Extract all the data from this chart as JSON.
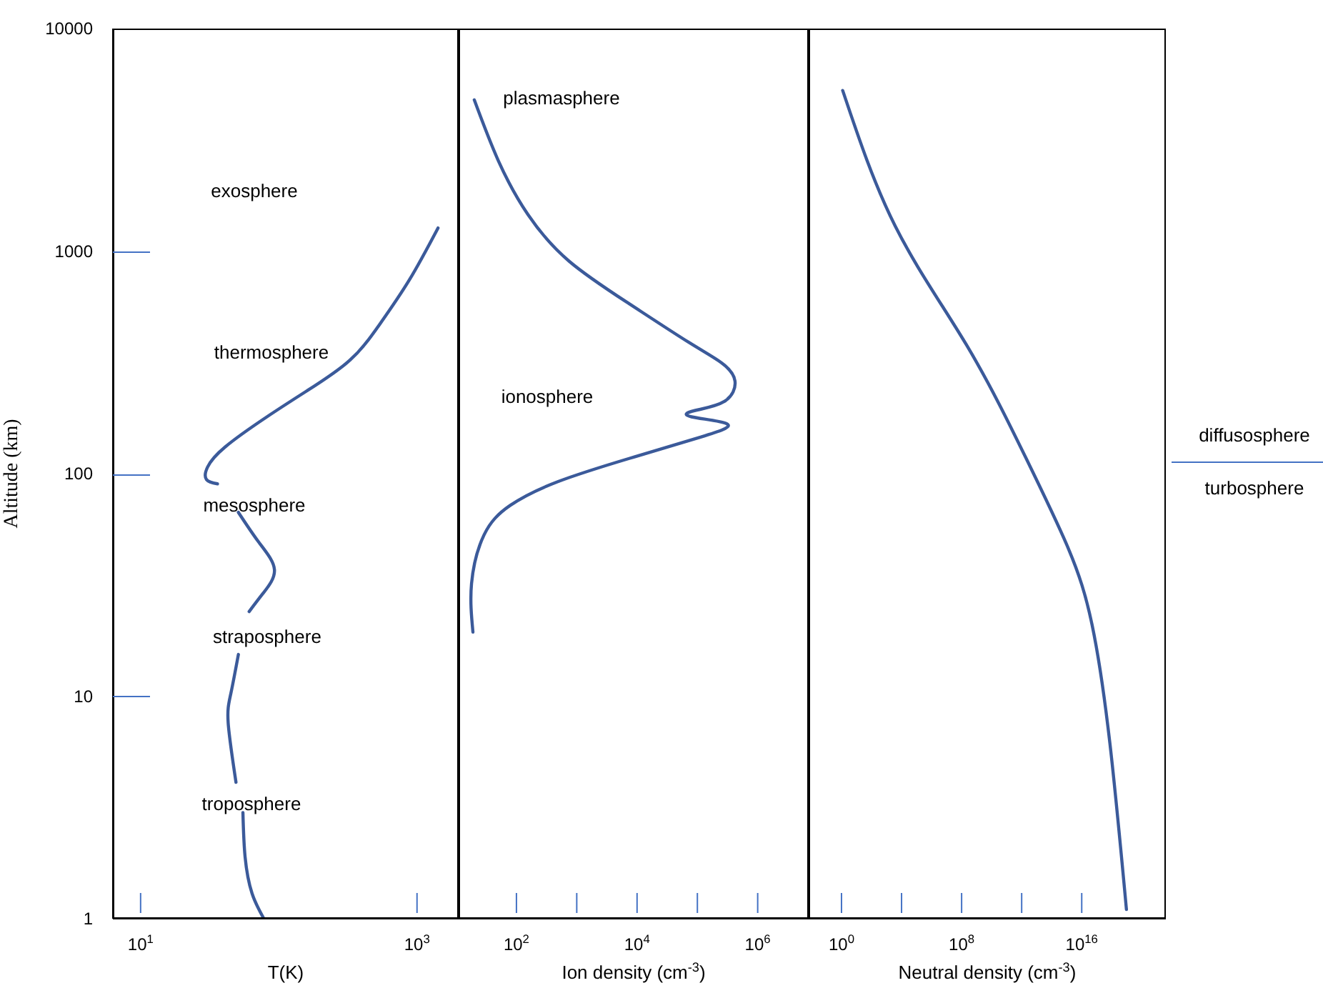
{
  "chart_data": [
    {
      "type": "line",
      "xlabel": "T(K)",
      "ylabel": "Altitude (km)",
      "log": "xy",
      "xlim": [
        6.3,
        2000
      ],
      "ylim": [
        1,
        10000
      ],
      "xticks": [
        {
          "value": 10,
          "label": "10$^{1}$"
        },
        {
          "value": 1000,
          "label": "10$^{3}$"
        }
      ],
      "yticks": [
        1,
        10,
        100,
        1000,
        10000
      ],
      "series": [
        {
          "color": "#3b5a9a",
          "x": [
            1419,
            881,
            537,
            328,
            164,
            82,
            41,
            30.5,
            30,
            36,
            null,
            51,
            72,
            93,
            77,
            61,
            null,
            51,
            45,
            43,
            49,
            null,
            55,
            57,
            64,
            78
          ],
          "values": [
            1270,
            743,
            469,
            324,
            238,
            180,
            132,
            107,
            94,
            90,
            null,
            67,
            49,
            37,
            29,
            24,
            null,
            15.4,
            10.3,
            7.6,
            4.1,
            null,
            3.0,
            1.9,
            1.3,
            1.0
          ]
        }
      ],
      "annotations": [
        "exosphere",
        "thermosphere",
        "mesosphere",
        "straposphere",
        "troposphere"
      ]
    },
    {
      "type": "line",
      "xlabel": "Ion density (cm$^{-3}$)",
      "log": "xy",
      "xlim": [
        11,
        7000000
      ],
      "ylim": [
        1,
        10000
      ],
      "tick_labels": "x",
      "xticks": [
        {
          "value": 100,
          "label": "10$^{2}$"
        },
        {
          "value": 1000,
          "label": null
        },
        {
          "value": 10000,
          "label": "10$^{4}$"
        },
        {
          "value": 100000,
          "label": null
        },
        {
          "value": 1000000,
          "label": "10$^{6}$"
        }
      ],
      "yticks": [
        1,
        10,
        100,
        1000,
        10000
      ],
      "series": [
        {
          "color": "#3b5a9a",
          "x": [
            20,
            50,
            155,
            750,
            7400,
            72000,
            250000,
            420000,
            280000,
            90000,
            80000,
            314000,
            113000,
            7400,
            485,
            79,
            29,
            18,
            19
          ],
          "values": [
            4780,
            2550,
            1460,
            900,
            580,
            389,
            315,
            261,
            211,
            192,
            180,
            167,
            146,
            117,
            92,
            72,
            53,
            32,
            19.4
          ]
        }
      ],
      "annotations": [
        "plasmasphere",
        "ionosphere"
      ]
    },
    {
      "type": "line",
      "xlabel": "Neutral density (cm$^{-3}$)",
      "log": "xy",
      "xlim": [
        0.0065,
        4e+21
      ],
      "ylim": [
        1,
        10000
      ],
      "tick_labels": "x",
      "xticks": [
        {
          "value": 1,
          "label": "10$^{0}$"
        },
        {
          "value": 10000,
          "label": null
        },
        {
          "value": 100000000,
          "label": "10$^{8}$"
        },
        {
          "value": 1000000000000,
          "label": null
        },
        {
          "value": 1e+16,
          "label": "10$^{16}$"
        }
      ],
      "yticks": [
        1,
        10,
        100,
        1000,
        10000
      ],
      "series": [
        {
          "color": "#3b5a9a",
          "x": [
            1.2,
            3900,
            220000000,
            2000000000000,
            1300000000000000.0,
            4.9e+16,
            7.6e+17,
            9.5e+18
          ],
          "values": [
            5270,
            1290,
            377,
            117,
            46,
            20.9,
            6.1,
            1.1
          ]
        }
      ],
      "annotations": [
        "diffusosphere",
        "turbosphere"
      ]
    }
  ]
}
